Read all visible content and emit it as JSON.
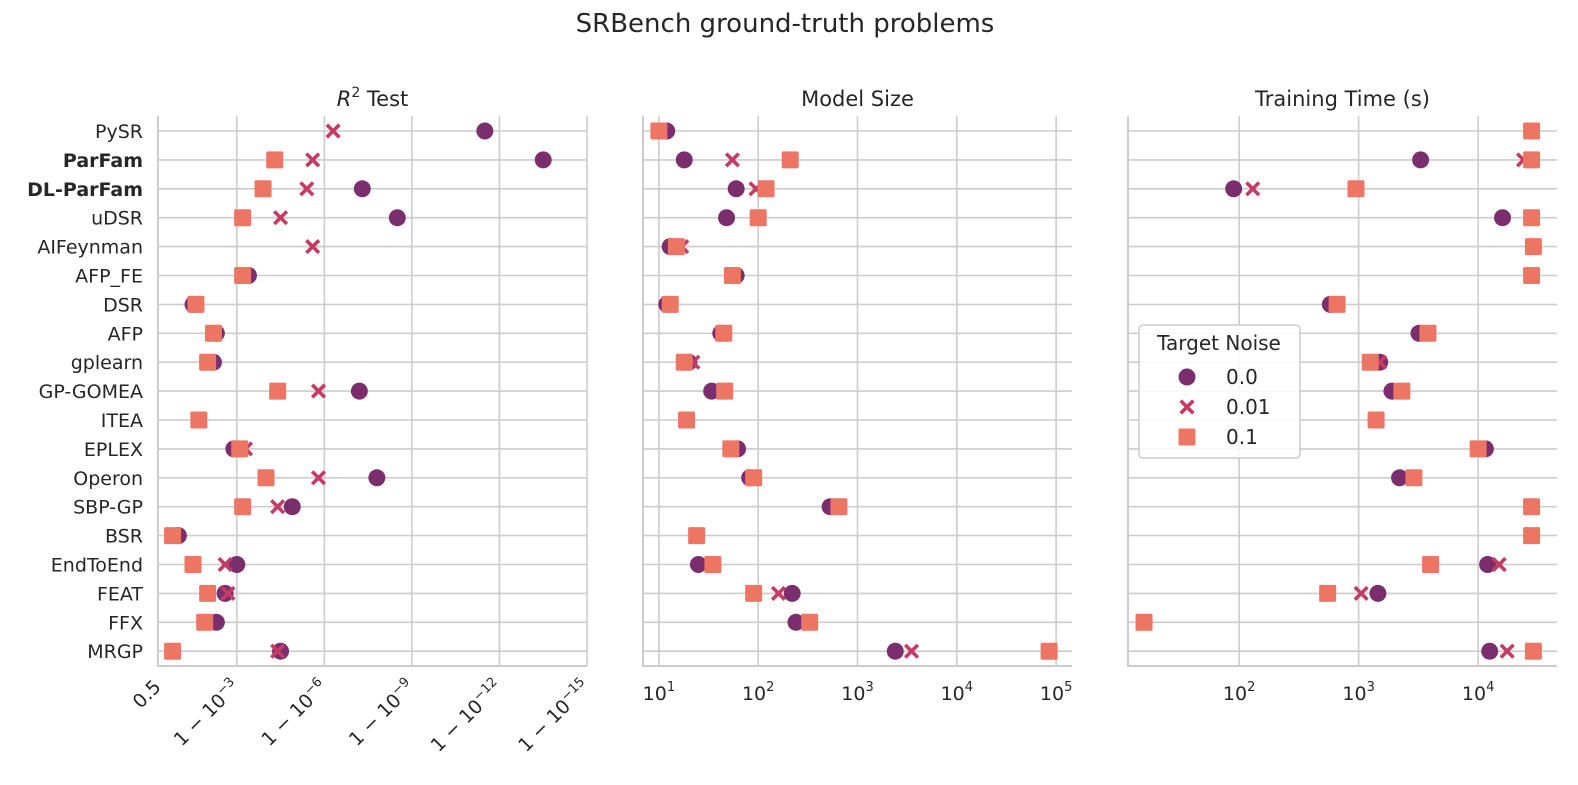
{
  "chart_data": {
    "type": "scatter",
    "title": "SRBench ground-truth problems",
    "methods": [
      "PySR",
      "ParFam",
      "DL-ParFam",
      "uDSR",
      "AIFeynman",
      "AFP_FE",
      "DSR",
      "AFP",
      "gplearn",
      "GP-GOMEA",
      "ITEA",
      "EPLEX",
      "Operon",
      "SBP-GP",
      "BSR",
      "EndToEnd",
      "FEAT",
      "FFX",
      "MRGP"
    ],
    "bold_methods": [
      "ParFam",
      "DL-ParFam"
    ],
    "legend": {
      "title": "Target Noise",
      "entries": [
        "0.0",
        "0.01",
        "0.1"
      ],
      "location": "center-left of Training Time panel"
    },
    "colors": {
      "0.0": "#7b2e6e",
      "0.01": "#c43c63",
      "0.1": "#ec7563",
      "grid": "#cccccc"
    },
    "panels": [
      {
        "name": "r2",
        "title_html": "R² Test",
        "title_main": "R",
        "title_sup": "2",
        "title_rest": " Test",
        "xscale": "log(1-R2) reversed",
        "xlim_decades": [
          0.3,
          15
        ],
        "tick_labels": [
          {
            "pos": 0.301,
            "base": "0.5",
            "exp": ""
          },
          {
            "pos": 3,
            "base": "1 − 10",
            "exp": "−3"
          },
          {
            "pos": 6,
            "base": "1 − 10",
            "exp": "−6"
          },
          {
            "pos": 9,
            "base": "1 − 10",
            "exp": "−9"
          },
          {
            "pos": 12,
            "base": "1 − 10",
            "exp": "−12"
          },
          {
            "pos": 15,
            "base": "1 − 10",
            "exp": "−15"
          }
        ],
        "series": [
          {
            "noise": "0.0",
            "values": [
              11.5,
              13.5,
              7.3,
              8.5,
              null,
              3.4,
              1.5,
              2.3,
              2.2,
              7.2,
              null,
              2.9,
              7.8,
              4.9,
              1.0,
              3.0,
              2.6,
              2.3,
              4.5
            ]
          },
          {
            "noise": "0.01",
            "values": [
              6.3,
              5.6,
              5.4,
              4.5,
              5.6,
              null,
              null,
              null,
              null,
              5.8,
              null,
              3.3,
              5.8,
              4.4,
              null,
              2.6,
              2.7,
              null,
              4.4
            ]
          },
          {
            "noise": "0.1",
            "values": [
              null,
              4.3,
              3.9,
              3.2,
              null,
              3.2,
              1.6,
              2.2,
              2.0,
              4.4,
              1.7,
              3.1,
              4.0,
              3.2,
              0.8,
              1.5,
              2.0,
              1.9,
              0.8
            ]
          }
        ]
      },
      {
        "name": "size",
        "title_main": "Model Size",
        "title_sup": "",
        "title_rest": "",
        "xscale": "log",
        "xlim_log": [
          0.84,
          5.16
        ],
        "tick_labels": [
          {
            "pos": 1,
            "base": "10",
            "exp": "1"
          },
          {
            "pos": 2,
            "base": "10",
            "exp": "2"
          },
          {
            "pos": 3,
            "base": "10",
            "exp": "3"
          },
          {
            "pos": 4,
            "base": "10",
            "exp": "4"
          },
          {
            "pos": 5,
            "base": "10",
            "exp": "5"
          }
        ],
        "series": [
          {
            "noise": "0.0",
            "values": [
              12,
              18,
              60,
              48,
              13,
              60,
              12,
              42,
              20,
              34,
              null,
              62,
              82,
              530,
              null,
              25,
              220,
              240,
              2400
            ]
          },
          {
            "noise": "0.01",
            "values": [
              null,
              55,
              95,
              null,
              17,
              null,
              null,
              null,
              22,
              null,
              null,
              null,
              null,
              null,
              null,
              null,
              160,
              null,
              3500
            ]
          },
          {
            "noise": "0.1",
            "values": [
              10,
              210,
              120,
              100,
              15,
              55,
              13,
              45,
              18,
              46,
              19,
              53,
              90,
              650,
              24,
              35,
              90,
              330,
              85000
            ]
          }
        ]
      },
      {
        "name": "time",
        "title_main": "Training Time (s)",
        "title_sup": "",
        "title_rest": "",
        "xscale": "log",
        "xlim_log": [
          1.07,
          4.66
        ],
        "tick_labels": [
          {
            "pos": 2,
            "base": "10",
            "exp": "2"
          },
          {
            "pos": 3,
            "base": "10",
            "exp": "3"
          },
          {
            "pos": 4,
            "base": "10",
            "exp": "4"
          }
        ],
        "series": [
          {
            "noise": "0.0",
            "values": [
              null,
              3300,
              90,
              16000,
              null,
              null,
              580,
              3200,
              1500,
              1900,
              1400,
              11500,
              2200,
              null,
              null,
              12000,
              1450,
              null,
              12500
            ]
          },
          {
            "noise": "0.01",
            "values": [
              null,
              24000,
              130,
              null,
              null,
              null,
              null,
              null,
              1500,
              null,
              null,
              null,
              null,
              null,
              null,
              15000,
              1050,
              null,
              17500
            ]
          },
          {
            "noise": "0.1",
            "values": [
              28000,
              28000,
              950,
              28000,
              29000,
              28000,
              660,
              3800,
              1250,
              2300,
              1400,
              10000,
              2900,
              28000,
              28000,
              4000,
              550,
              16,
              29000
            ]
          }
        ]
      }
    ]
  }
}
